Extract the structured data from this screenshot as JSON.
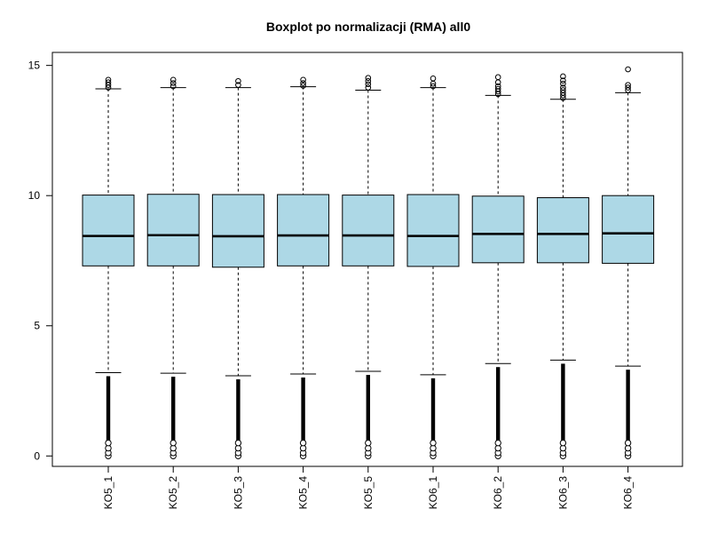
{
  "chart_data": {
    "type": "boxplot",
    "title": "Boxplot po normalizacji (RMA) all0",
    "xlabel": "",
    "ylabel": "",
    "ylim": [
      -0.4,
      15.5
    ],
    "yticks": [
      0,
      5,
      10,
      15
    ],
    "box_color": "#ADD8E6",
    "categories": [
      "KO5_1",
      "KO5_2",
      "KO5_3",
      "KO5_4",
      "KO5_5",
      "KO6_1",
      "KO6_2",
      "KO6_3",
      "KO6_4"
    ],
    "series": [
      {
        "q1": 7.3,
        "median": 8.45,
        "q3": 10.02,
        "whisker_low": 3.2,
        "whisker_high": 14.1,
        "outliers_high": [
          14.15,
          14.25,
          14.35,
          14.45
        ]
      },
      {
        "q1": 7.3,
        "median": 8.48,
        "q3": 10.05,
        "whisker_low": 3.18,
        "whisker_high": 14.15,
        "outliers_high": [
          14.2,
          14.32,
          14.45
        ]
      },
      {
        "q1": 7.25,
        "median": 8.44,
        "q3": 10.04,
        "whisker_low": 3.08,
        "whisker_high": 14.15,
        "outliers_high": [
          14.25,
          14.4
        ]
      },
      {
        "q1": 7.3,
        "median": 8.47,
        "q3": 10.04,
        "whisker_low": 3.15,
        "whisker_high": 14.18,
        "outliers_high": [
          14.22,
          14.32,
          14.45
        ]
      },
      {
        "q1": 7.3,
        "median": 8.47,
        "q3": 10.02,
        "whisker_low": 3.25,
        "whisker_high": 14.05,
        "outliers_high": [
          14.15,
          14.28,
          14.4,
          14.52
        ]
      },
      {
        "q1": 7.28,
        "median": 8.45,
        "q3": 10.04,
        "whisker_low": 3.12,
        "whisker_high": 14.15,
        "outliers_high": [
          14.2,
          14.3,
          14.5
        ]
      },
      {
        "q1": 7.42,
        "median": 8.53,
        "q3": 9.98,
        "whisker_low": 3.55,
        "whisker_high": 13.85,
        "outliers_high": [
          13.9,
          14.0,
          14.1,
          14.2,
          14.35,
          14.55
        ]
      },
      {
        "q1": 7.42,
        "median": 8.53,
        "q3": 9.92,
        "whisker_low": 3.68,
        "whisker_high": 13.7,
        "outliers_high": [
          13.75,
          13.85,
          13.95,
          14.05,
          14.15,
          14.3,
          14.42,
          14.58
        ]
      },
      {
        "q1": 7.4,
        "median": 8.55,
        "q3": 10.0,
        "whisker_low": 3.45,
        "whisker_high": 13.95,
        "outliers_high": [
          14.05,
          14.15,
          14.25,
          14.85
        ]
      }
    ]
  }
}
